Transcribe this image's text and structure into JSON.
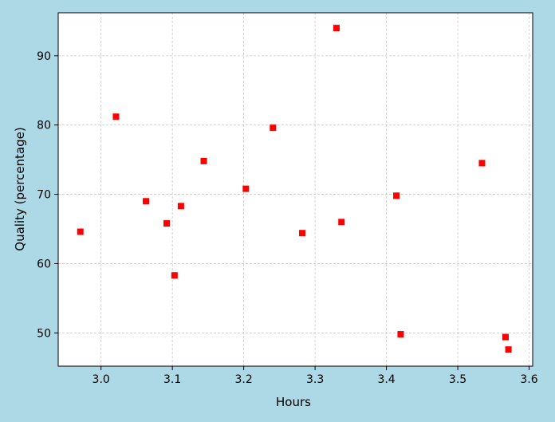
{
  "chart_data": {
    "type": "scatter",
    "title": "",
    "xlabel": "Hours",
    "ylabel": "Quality (percentage)",
    "xlim": [
      2.94,
      3.605
    ],
    "ylim": [
      45.2,
      96.2
    ],
    "xticks": [
      3.0,
      3.1,
      3.2,
      3.3,
      3.4,
      3.5,
      3.6
    ],
    "xtick_labels": [
      "3.0",
      "3.1",
      "3.2",
      "3.3",
      "3.4",
      "3.5",
      "3.6"
    ],
    "yticks": [
      50,
      60,
      70,
      80,
      90
    ],
    "ytick_labels": [
      "50",
      "60",
      "70",
      "80",
      "90"
    ],
    "grid": true,
    "marker": "square",
    "colors": {
      "background": "#add8e6",
      "plot_area": "#ffffff",
      "marker": "#ff0000",
      "grid": "#c8c8c8"
    },
    "points": [
      {
        "x": 2.971,
        "y": 64.6
      },
      {
        "x": 3.021,
        "y": 81.2
      },
      {
        "x": 3.063,
        "y": 69.0
      },
      {
        "x": 3.092,
        "y": 65.8
      },
      {
        "x": 3.103,
        "y": 58.3
      },
      {
        "x": 3.112,
        "y": 68.3
      },
      {
        "x": 3.144,
        "y": 74.8
      },
      {
        "x": 3.203,
        "y": 70.8
      },
      {
        "x": 3.241,
        "y": 79.6
      },
      {
        "x": 3.282,
        "y": 64.4
      },
      {
        "x": 3.33,
        "y": 94.0
      },
      {
        "x": 3.337,
        "y": 66.0
      },
      {
        "x": 3.414,
        "y": 69.8
      },
      {
        "x": 3.42,
        "y": 49.8
      },
      {
        "x": 3.534,
        "y": 74.5
      },
      {
        "x": 3.567,
        "y": 49.4
      },
      {
        "x": 3.571,
        "y": 47.6
      }
    ]
  }
}
